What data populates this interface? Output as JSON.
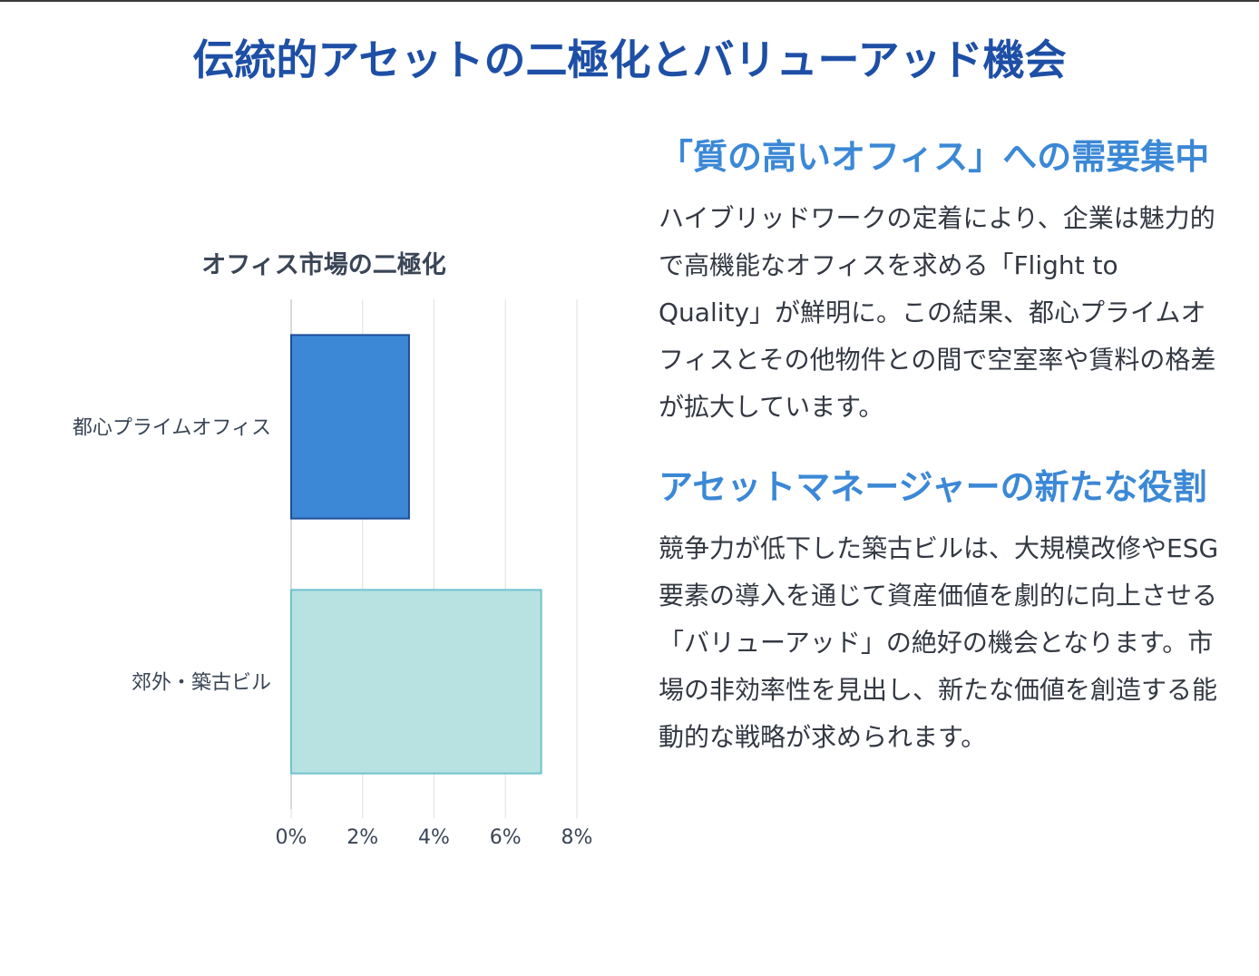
{
  "page": {
    "title": "伝統的アセットの二極化とバリューアッド機会"
  },
  "sections": [
    {
      "heading": "「質の高いオフィス」への需要集中",
      "body": "ハイブリッドワークの定着により、企業は魅力的で高機能なオフィスを求める「Flight to Quality」が鮮明に。この結果、都心プライムオフィスとその他物件との間で空室率や賃料の格差が拡大しています。"
    },
    {
      "heading": "アセットマネージャーの新たな役割",
      "body": "競争力が低下した築古ビルは、大規模改修やESG要素の導入を通じて資産価値を劇的に向上させる「バリューアッド」の絶好の機会となります。市場の非効率性を見出し、新たな価値を創造する能動的な戦略が求められます。"
    }
  ],
  "chart_data": {
    "type": "bar",
    "orientation": "horizontal",
    "title": "オフィス市場の二極化",
    "categories": [
      "都心プライムオフィス",
      "郊外・築古ビル"
    ],
    "values": [
      3.3,
      7.0
    ],
    "value_unit": "%",
    "xlim": [
      0,
      8
    ],
    "xticks": [
      "0%",
      "2%",
      "4%",
      "6%",
      "8%"
    ],
    "xtick_values": [
      0,
      2,
      4,
      6,
      8
    ],
    "grid": true,
    "legend": "none",
    "colors": {
      "fills": [
        "#3d88d6",
        "#b8e2e2"
      ],
      "strokes": [
        "#1f4e96",
        "#6fc3cf"
      ],
      "grid": "#e2e4e8",
      "tick_text": "#3a4556"
    }
  },
  "colors": {
    "title": "#1e4fa6",
    "heading": "#3b88d6",
    "body_text": "#333842"
  }
}
